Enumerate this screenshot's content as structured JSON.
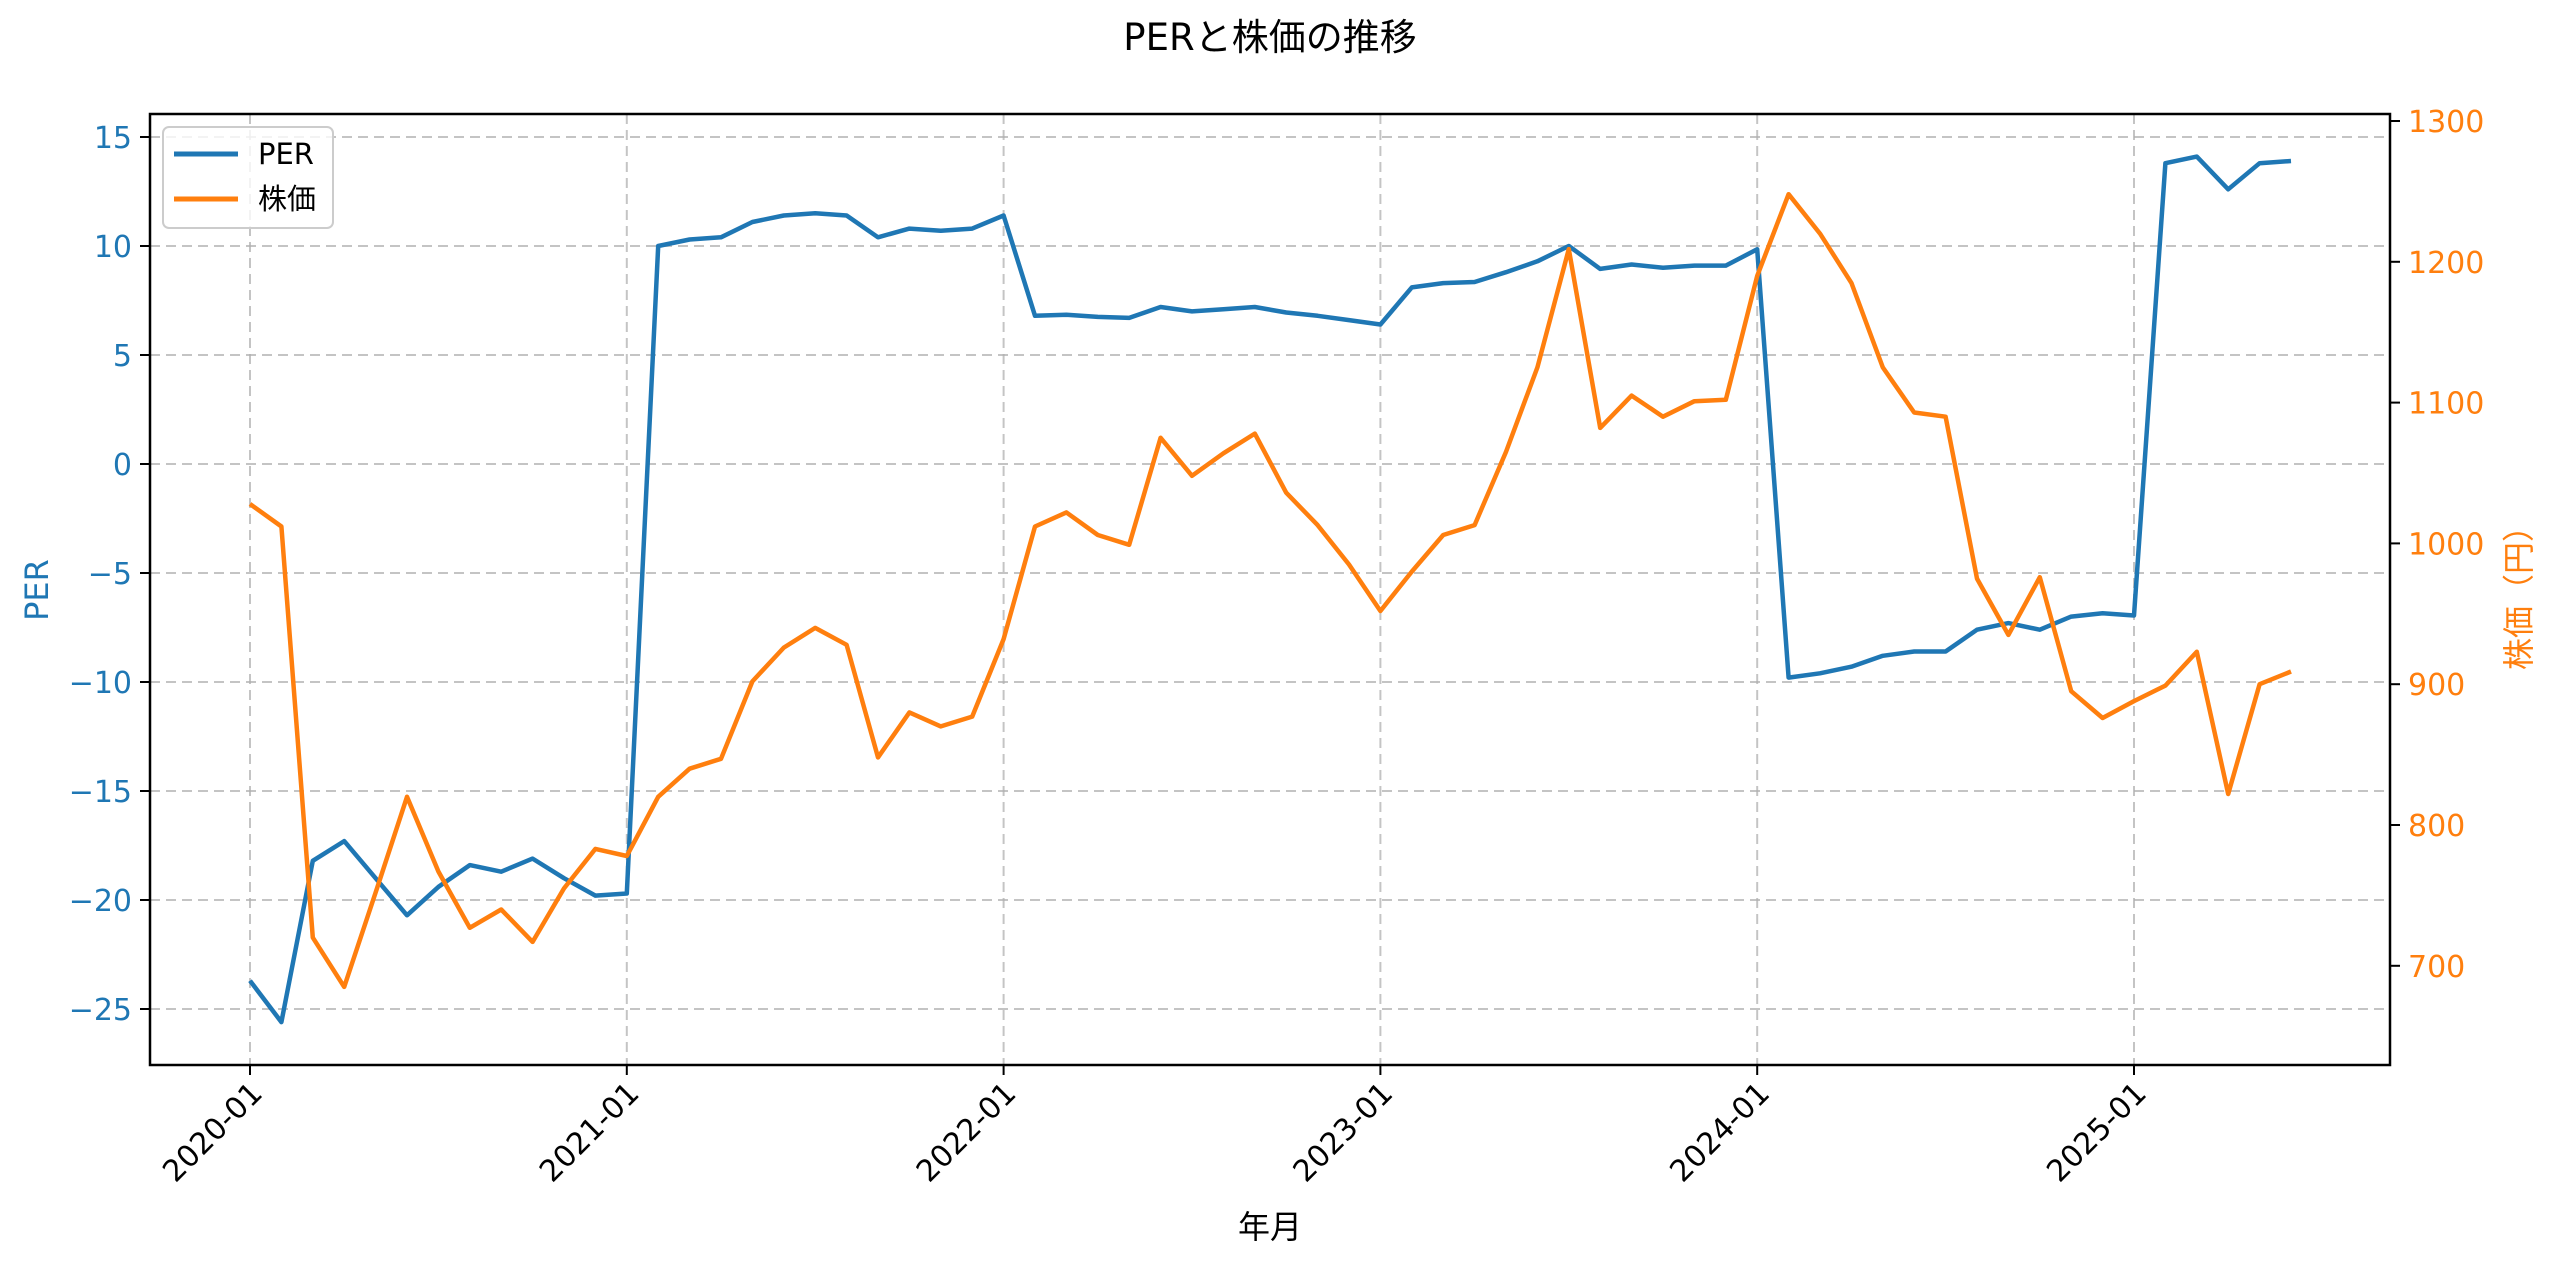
{
  "chart_data": {
    "type": "line",
    "title": "PERと株価の推移",
    "xlabel": "年月",
    "ylabel_left": "PER",
    "ylabel_right": "株価（円）",
    "xtick_labels": [
      "2020-01",
      "2021-01",
      "2022-01",
      "2023-01",
      "2024-01",
      "2025-01"
    ],
    "ytick_labels_left": [
      "-25",
      "-20",
      "-15",
      "-10",
      "-5",
      "0",
      "5",
      "10",
      "15"
    ],
    "ytick_labels_right": [
      "700",
      "800",
      "900",
      "1000",
      "1100",
      "1200",
      "1300"
    ],
    "ylim_left": [
      -27.6,
      16.0
    ],
    "ylim_right": [
      626,
      1305
    ],
    "grid": true,
    "legend_position": "upper left",
    "x_start": "2020-01",
    "x_end": "2025-06",
    "series": [
      {
        "name": "PER",
        "axis": "left",
        "color": "#1f77b4",
        "values": [
          -23.7,
          -25.6,
          -18.2,
          -17.3,
          -19.0,
          -20.7,
          -19.4,
          -18.4,
          -18.7,
          -18.1,
          -19.0,
          -19.8,
          -19.7,
          10.0,
          10.3,
          10.4,
          11.1,
          11.4,
          11.5,
          11.4,
          10.4,
          10.8,
          10.7,
          10.8,
          11.4,
          6.8,
          6.85,
          6.75,
          6.7,
          7.2,
          7.0,
          7.1,
          7.2,
          6.95,
          6.8,
          6.6,
          6.4,
          8.1,
          8.3,
          8.35,
          8.8,
          9.3,
          10.0,
          8.95,
          9.15,
          9.0,
          9.1,
          9.1,
          9.85,
          -9.8,
          -9.6,
          -9.3,
          -8.8,
          -8.6,
          -8.6,
          -7.6,
          -7.3,
          -7.6,
          -7.0,
          -6.85,
          -6.95,
          13.8,
          14.1,
          12.6,
          13.8,
          13.9
        ]
      },
      {
        "name": "株価",
        "axis": "right",
        "color": "#ff7f0e",
        "values": [
          1028,
          1012,
          720,
          685,
          752,
          820,
          767,
          727,
          740,
          717,
          755,
          783,
          778,
          820,
          840,
          847,
          902,
          926,
          940,
          928,
          848,
          880,
          870,
          877,
          932,
          1012,
          1022,
          1006,
          999,
          1075,
          1048,
          1064,
          1078,
          1036,
          1013,
          985,
          952,
          980,
          1006,
          1013,
          1065,
          1125,
          1209,
          1082,
          1105,
          1090,
          1101,
          1102,
          1190,
          1248,
          1220,
          1185,
          1125,
          1093,
          1090,
          975,
          935,
          976,
          895,
          876,
          888,
          899,
          923,
          822,
          900,
          909
        ]
      }
    ]
  },
  "legend": {
    "items": [
      {
        "label": "PER",
        "color": "#1f77b4"
      },
      {
        "label": "株価",
        "color": "#ff7f0e"
      }
    ]
  }
}
